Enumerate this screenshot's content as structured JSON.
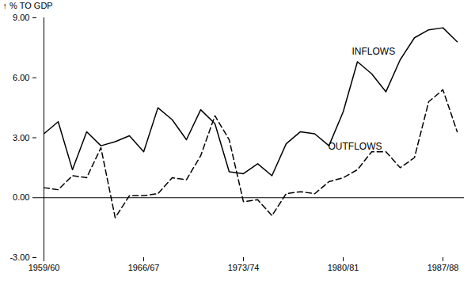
{
  "chart_data": {
    "type": "line",
    "y_label": "% TO GDP",
    "categories": [
      "1959/60",
      null,
      null,
      null,
      null,
      null,
      null,
      "1966/67",
      null,
      null,
      null,
      null,
      null,
      null,
      "1973/74",
      null,
      null,
      null,
      null,
      null,
      null,
      "1980/81",
      null,
      null,
      null,
      null,
      null,
      null,
      "1987/88",
      null
    ],
    "series": [
      {
        "name": "INFLOWS",
        "color": "#000000",
        "line_style": "solid",
        "values": [
          3.2,
          3.8,
          1.4,
          3.3,
          2.6,
          2.8,
          3.1,
          2.3,
          4.5,
          3.9,
          2.9,
          4.4,
          3.7,
          1.3,
          1.2,
          1.7,
          1.1,
          2.7,
          3.3,
          3.2,
          2.6,
          4.3,
          6.8,
          6.2,
          5.3,
          6.9,
          8.0,
          8.4,
          8.5,
          7.8
        ]
      },
      {
        "name": "OUTFLOWS",
        "color": "#000000",
        "line_style": "dashed",
        "values": [
          0.5,
          0.4,
          1.1,
          1.0,
          2.5,
          -1.0,
          0.1,
          0.1,
          0.2,
          1.0,
          0.9,
          2.1,
          4.1,
          2.9,
          -0.2,
          -0.1,
          -0.9,
          0.2,
          0.3,
          0.2,
          0.8,
          1.0,
          1.4,
          2.3,
          2.3,
          1.5,
          2.0,
          4.8,
          5.4,
          3.3
        ]
      }
    ],
    "ylim": [
      -3,
      9
    ],
    "yticks": [
      {
        "value": -3,
        "label": "-3.00"
      },
      {
        "value": 0,
        "label": "0.00"
      },
      {
        "value": 3,
        "label": "3.00"
      },
      {
        "value": 6,
        "label": "6.00"
      },
      {
        "value": 9,
        "label": "9.00"
      }
    ],
    "grid": false
  }
}
